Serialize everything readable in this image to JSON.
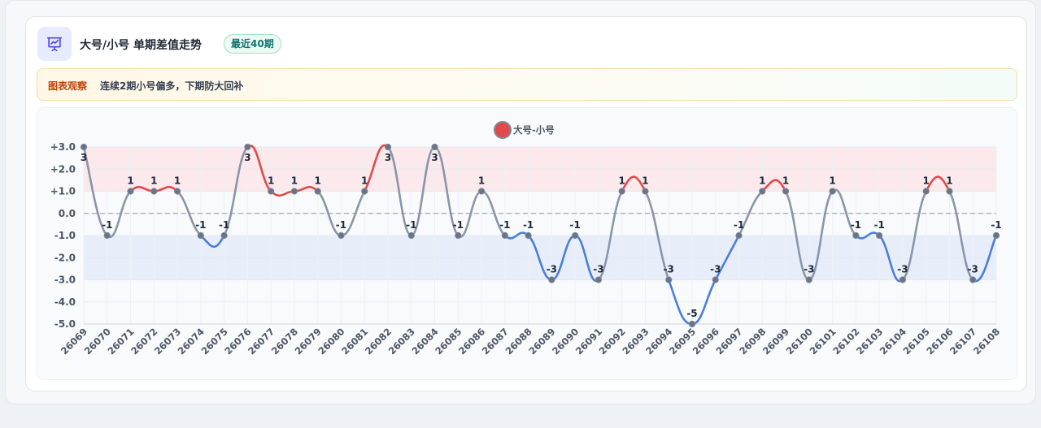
{
  "header": {
    "title": "大号/小号 单期差值走势",
    "badge": "最近40期",
    "icon": "presentation-chart-icon"
  },
  "observation": {
    "label": "图表观察",
    "text": "连续2期小号偏多，下期防大回补"
  },
  "colors": {
    "positive": "#e04a4a",
    "negative": "#4a7fd6",
    "neutral": "#8a96a8",
    "positive_band": "#fbe7ea",
    "negative_band": "#e4ecfa",
    "accent": "#4f46e5"
  },
  "chart_data": {
    "type": "line",
    "title": "",
    "legend": {
      "position": "top-center"
    },
    "x": [
      "26069",
      "26070",
      "26071",
      "26072",
      "26073",
      "26074",
      "26075",
      "26076",
      "26077",
      "26078",
      "26079",
      "26080",
      "26081",
      "26082",
      "26083",
      "26084",
      "26085",
      "26086",
      "26087",
      "26088",
      "26089",
      "26090",
      "26091",
      "26092",
      "26093",
      "26094",
      "26095",
      "26096",
      "26097",
      "26098",
      "26099",
      "26100",
      "26101",
      "26102",
      "26103",
      "26104",
      "26105",
      "26106",
      "26107",
      "26108"
    ],
    "series": [
      {
        "name": "大号-小号",
        "values": [
          3,
          -1,
          1,
          1,
          1,
          -1,
          -1,
          3,
          1,
          1,
          1,
          -1,
          1,
          3,
          -1,
          3,
          -1,
          1,
          -1,
          -1,
          -3,
          -1,
          -3,
          1,
          1,
          -3,
          -5,
          -3,
          -1,
          1,
          1,
          -3,
          1,
          -1,
          -1,
          -3,
          1,
          1,
          -3,
          -1
        ]
      }
    ],
    "ylim": [
      -5,
      3
    ],
    "yticks": [
      "+3.0",
      "+2.0",
      "+1.0",
      "0.0",
      "-1.0",
      "-2.0",
      "-3.0",
      "-4.0",
      "-5.0"
    ],
    "ytick_values": [
      3,
      2,
      1,
      0,
      -1,
      -2,
      -3,
      -4,
      -5
    ],
    "bands": [
      {
        "from": 1,
        "to": 3,
        "tone": "positive"
      },
      {
        "from": -3,
        "to": -1,
        "tone": "negative"
      }
    ],
    "reference_line": 0,
    "grid": true
  }
}
